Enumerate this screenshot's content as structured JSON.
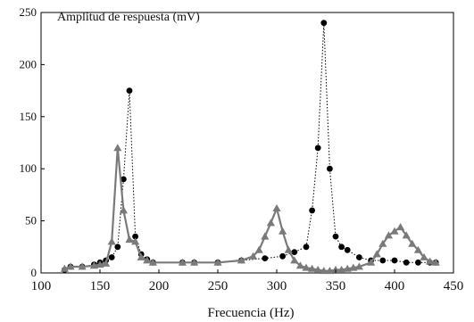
{
  "chart_data": {
    "type": "scatter",
    "title": "Amplitud de respuesta (mV)",
    "xlabel": "Frecuencia  (Hz)",
    "ylabel": "",
    "xlim": [
      100,
      450
    ],
    "ylim": [
      0,
      250
    ],
    "x_ticks": [
      100,
      150,
      200,
      250,
      300,
      350,
      400,
      450
    ],
    "y_ticks": [
      0,
      50,
      100,
      150,
      200,
      250
    ],
    "grid": false,
    "legend": "none",
    "series": [
      {
        "marker": "circle",
        "line": "dotted",
        "color": "#000000",
        "x": [
          120,
          125,
          135,
          145,
          150,
          155,
          160,
          165,
          170,
          175,
          180,
          185,
          190,
          195,
          220,
          230,
          250,
          270,
          290,
          305,
          315,
          325,
          330,
          335,
          340,
          345,
          350,
          355,
          360,
          370,
          380,
          390,
          400,
          410,
          420,
          430,
          435
        ],
        "y": [
          3,
          6,
          6,
          8,
          10,
          12,
          15,
          25,
          90,
          175,
          35,
          18,
          13,
          10,
          10,
          10,
          10,
          12,
          14,
          16,
          20,
          25,
          60,
          120,
          240,
          100,
          35,
          25,
          22,
          15,
          12,
          12,
          12,
          10,
          10,
          10,
          10
        ]
      },
      {
        "marker": "triangle",
        "line": "solid",
        "color": "#7a7a7a",
        "x": [
          120,
          125,
          135,
          145,
          150,
          155,
          160,
          165,
          170,
          175,
          180,
          185,
          190,
          195,
          220,
          230,
          250,
          270,
          280,
          285,
          290,
          295,
          300,
          305,
          310,
          315,
          320,
          325,
          330,
          335,
          340,
          345,
          350,
          355,
          360,
          365,
          370,
          380,
          385,
          390,
          395,
          400,
          405,
          410,
          415,
          420,
          425,
          430,
          435
        ],
        "y": [
          4,
          6,
          6,
          7,
          8,
          9,
          30,
          120,
          60,
          32,
          30,
          15,
          12,
          10,
          10,
          10,
          10,
          12,
          16,
          22,
          35,
          48,
          62,
          40,
          22,
          12,
          7,
          5,
          4,
          3,
          2,
          2,
          3,
          3,
          4,
          5,
          6,
          10,
          18,
          28,
          36,
          40,
          44,
          36,
          28,
          22,
          15,
          11,
          10
        ]
      }
    ]
  }
}
